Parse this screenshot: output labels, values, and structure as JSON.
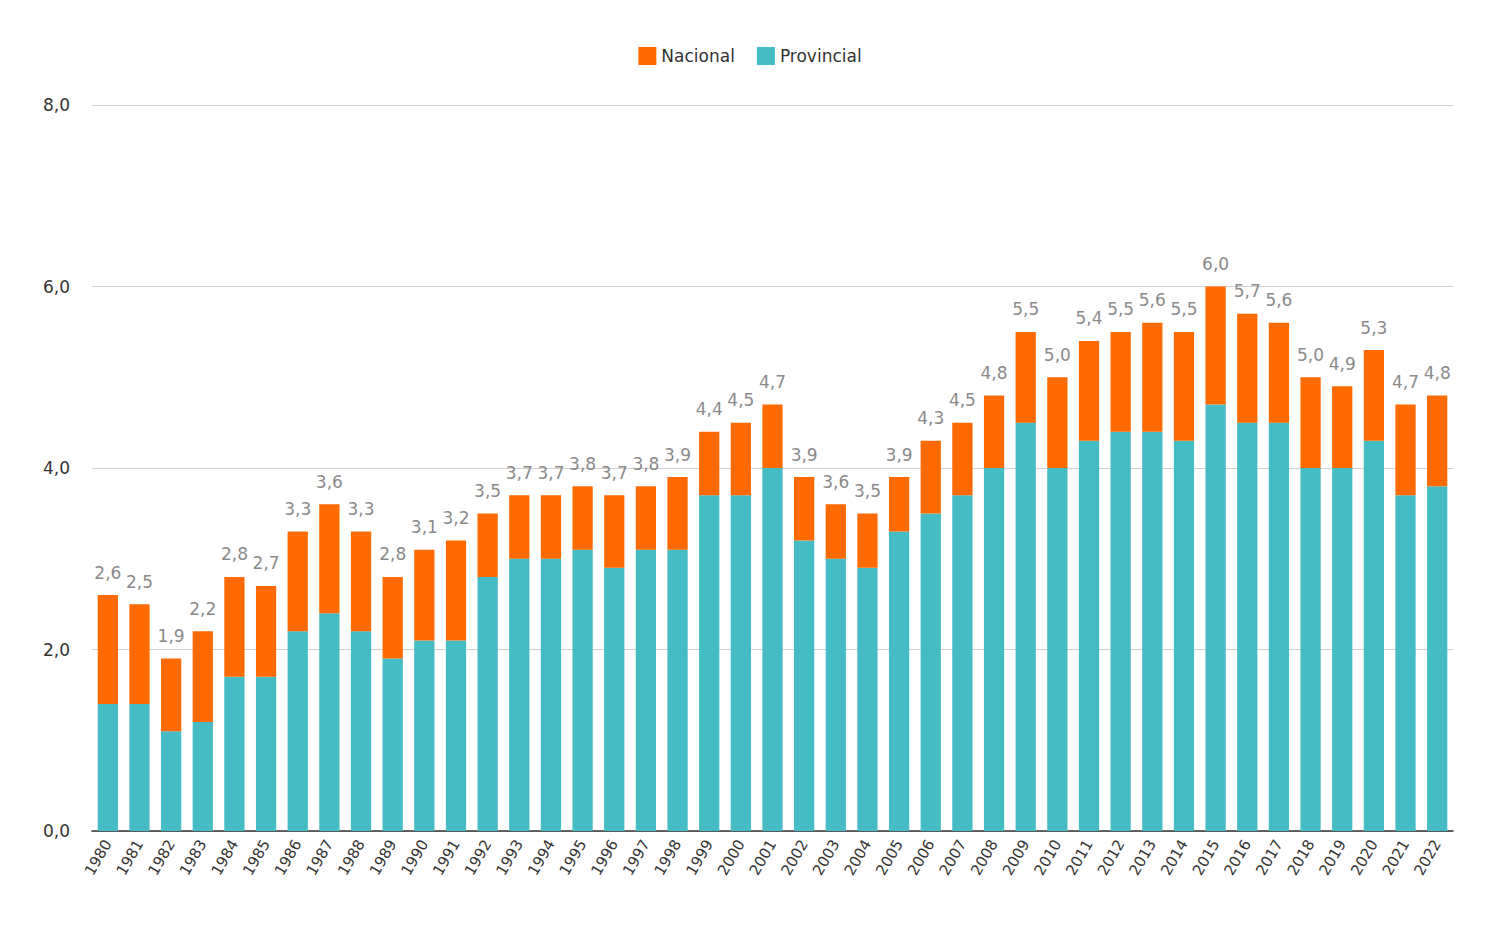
{
  "chart_data": {
    "type": "bar",
    "stacked": true,
    "grid": true,
    "legend": "top",
    "categories": [
      "1980",
      "1981",
      "1982",
      "1983",
      "1984",
      "1985",
      "1986",
      "1987",
      "1988",
      "1989",
      "1990",
      "1991",
      "1992",
      "1993",
      "1994",
      "1995",
      "1996",
      "1997",
      "1998",
      "1999",
      "2000",
      "2001",
      "2002",
      "2003",
      "2004",
      "2005",
      "2006",
      "2007",
      "2008",
      "2009",
      "2010",
      "2011",
      "2012",
      "2013",
      "2014",
      "2015",
      "2016",
      "2017",
      "2018",
      "2019",
      "2020",
      "2021",
      "2022"
    ],
    "series": [
      {
        "name": "Nacional",
        "color": "#ff6a00",
        "values": [
          1.2,
          1.1,
          0.8,
          1.0,
          1.1,
          1.0,
          1.1,
          1.2,
          1.1,
          0.9,
          1.0,
          1.1,
          0.7,
          0.7,
          0.7,
          0.7,
          0.8,
          0.7,
          0.8,
          0.7,
          0.8,
          0.7,
          0.7,
          0.6,
          0.6,
          0.6,
          0.8,
          0.8,
          0.8,
          1.0,
          1.0,
          1.1,
          1.1,
          1.2,
          1.2,
          1.3,
          1.2,
          1.1,
          1.0,
          0.9,
          1.0,
          1.0,
          1.0
        ]
      },
      {
        "name": "Provincial",
        "color": "#45bcc4",
        "values": [
          1.4,
          1.4,
          1.1,
          1.2,
          1.7,
          1.7,
          2.2,
          2.4,
          2.2,
          1.9,
          2.1,
          2.1,
          2.8,
          3.0,
          3.0,
          3.1,
          2.9,
          3.1,
          3.1,
          3.7,
          3.7,
          4.0,
          3.2,
          3.0,
          2.9,
          3.3,
          3.5,
          3.7,
          4.0,
          4.5,
          4.0,
          4.3,
          4.4,
          4.4,
          4.3,
          4.7,
          4.5,
          4.5,
          4.0,
          4.0,
          4.3,
          3.7,
          3.8
        ]
      }
    ],
    "total_labels": [
      "2,6",
      "2,5",
      "1,9",
      "2,2",
      "2,8",
      "2,7",
      "3,3",
      "3,6",
      "3,3",
      "2,8",
      "3,1",
      "3,2",
      "3,5",
      "3,7",
      "3,7",
      "3,8",
      "3,7",
      "3,8",
      "3,9",
      "4,4",
      "4,5",
      "4,7",
      "3,9",
      "3,6",
      "3,5",
      "3,9",
      "4,3",
      "4,5",
      "4,8",
      "5,5",
      "5,0",
      "5,4",
      "5,5",
      "5,6",
      "5,5",
      "6,0",
      "5,7",
      "5,6",
      "5,0",
      "4,9",
      "5,3",
      "4,7",
      "4,8"
    ],
    "ylim": [
      0,
      8
    ],
    "yticks": [
      {
        "value": 0,
        "label": "0,0"
      },
      {
        "value": 2,
        "label": "2,0"
      },
      {
        "value": 4,
        "label": "4,0"
      },
      {
        "value": 6,
        "label": "6,0"
      },
      {
        "value": 8,
        "label": "8,0"
      }
    ]
  }
}
